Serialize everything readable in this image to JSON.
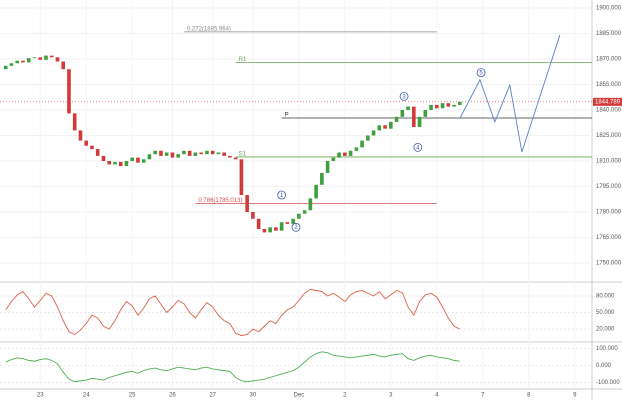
{
  "chart_data": {
    "type": "candlestick",
    "up_color": "#3f9f3f",
    "down_color": "#d23a3a",
    "x": [
      0,
      1,
      2,
      3,
      4,
      5,
      6,
      7,
      8,
      9,
      10,
      11,
      12,
      13,
      14,
      15,
      16,
      17,
      18,
      19,
      20,
      21,
      22,
      23,
      24,
      25,
      26,
      27,
      28,
      29,
      30,
      31,
      32,
      33,
      34,
      35,
      36,
      37,
      38,
      39,
      40,
      41,
      42,
      43,
      44,
      45,
      46,
      47,
      48,
      49,
      50,
      51,
      52,
      53,
      54,
      55,
      56,
      57,
      58,
      59,
      60,
      61,
      62,
      63,
      64,
      65,
      66,
      67,
      68,
      69,
      70,
      71,
      72,
      73,
      74,
      75,
      76,
      77,
      78,
      79
    ],
    "open": [
      1864,
      1866,
      1867.5,
      1869,
      1868,
      1870.5,
      1871,
      1869.5,
      1872,
      1871,
      1868.5,
      1864,
      1838,
      1828,
      1822,
      1819,
      1817,
      1813,
      1810,
      1808,
      1809.5,
      1807,
      1810,
      1812,
      1809,
      1811,
      1814,
      1816,
      1813,
      1815,
      1812,
      1814,
      1816,
      1813,
      1815,
      1814,
      1816,
      1814,
      1815,
      1813,
      1812,
      1811,
      1790,
      1780,
      1776,
      1770,
      1768,
      1771,
      1769,
      1774,
      1773,
      1776,
      1779,
      1781,
      1788,
      1796,
      1803,
      1810,
      1812,
      1815,
      1813,
      1816,
      1818,
      1822,
      1825,
      1828,
      1831,
      1829,
      1833,
      1836,
      1840,
      1842,
      1830,
      1836,
      1840,
      1843,
      1841,
      1844,
      1842,
      1843
    ],
    "close": [
      1866,
      1867.5,
      1869,
      1868,
      1870.5,
      1871,
      1869.5,
      1872,
      1871,
      1868.5,
      1864,
      1838,
      1828,
      1822,
      1819,
      1817,
      1813,
      1810,
      1808,
      1809.5,
      1807,
      1810,
      1812,
      1809,
      1811,
      1814,
      1816,
      1813,
      1815,
      1812,
      1814,
      1816,
      1813,
      1815,
      1814,
      1816,
      1814,
      1815,
      1813,
      1812,
      1811,
      1790,
      1780,
      1776,
      1770,
      1768,
      1771,
      1769,
      1774,
      1773,
      1776,
      1779,
      1781,
      1788,
      1796,
      1803,
      1810,
      1812,
      1815,
      1813,
      1816,
      1818,
      1822,
      1825,
      1828,
      1831,
      1829,
      1833,
      1836,
      1840,
      1842,
      1830,
      1836,
      1840,
      1843,
      1841,
      1844,
      1842,
      1843,
      1844.789
    ],
    "last_price": 1844.789,
    "xlim": [
      -1,
      102
    ],
    "xticks": [
      {
        "value": 6,
        "label": "23"
      },
      {
        "value": 14,
        "label": "24"
      },
      {
        "value": 22,
        "label": "25"
      },
      {
        "value": 29,
        "label": "26"
      },
      {
        "value": 36,
        "label": "27"
      },
      {
        "value": 43,
        "label": "30"
      },
      {
        "value": 51,
        "label": "Dec"
      },
      {
        "value": 59,
        "label": "2"
      },
      {
        "value": 67,
        "label": "3"
      },
      {
        "value": 75,
        "label": "4"
      },
      {
        "value": 83,
        "label": "7"
      },
      {
        "value": 91,
        "label": "8"
      },
      {
        "value": 99,
        "label": "9"
      }
    ],
    "ylim": [
      1740,
      1904.7
    ],
    "yticks": [
      {
        "value": 1900,
        "label": "1900.000"
      },
      {
        "value": 1885,
        "label": "1885.000"
      },
      {
        "value": 1870,
        "label": "1870.000"
      },
      {
        "value": 1855,
        "label": "1855.000"
      },
      {
        "value": 1840,
        "label": "1840.000"
      },
      {
        "value": 1825,
        "label": "1825.000"
      },
      {
        "value": 1810,
        "label": "1810.000"
      },
      {
        "value": 1795,
        "label": "1795.000"
      },
      {
        "value": 1780,
        "label": "1780.000"
      },
      {
        "value": 1765,
        "label": "1765.000"
      },
      {
        "value": 1750,
        "label": "1750.000"
      }
    ],
    "levels": [
      {
        "label": "0.272(1885.964)",
        "value": 1885.964,
        "from": 31,
        "to": 75,
        "color": "#8a8a8a"
      },
      {
        "label": "R1",
        "value": 1868,
        "from": 40,
        "to": 102,
        "color": "#6aa84f"
      },
      {
        "label": "P",
        "value": 1835.3,
        "from": 48,
        "to": 102,
        "color": "#333333"
      },
      {
        "label": "S1",
        "value": 1812.4,
        "from": 40,
        "to": 102,
        "color": "#6aa84f"
      },
      {
        "label": "0.786(1785.013)",
        "value": 1785.013,
        "from": 33,
        "to": 75,
        "color": "#d05050"
      }
    ],
    "waves": [
      {
        "label": "1",
        "x": 48,
        "y": 1790
      },
      {
        "label": "2",
        "x": 50.5,
        "y": 1771
      },
      {
        "label": "3",
        "x": 69.3,
        "y": 1848
      },
      {
        "label": "4",
        "x": 71.7,
        "y": 1818
      },
      {
        "label": "5",
        "x": 82.7,
        "y": 1862
      }
    ],
    "projection": {
      "color": "#5b7fc7",
      "x": [
        79,
        82.5,
        85.1,
        87.7,
        89.8,
        96.4
      ],
      "y": [
        1835,
        1857.7,
        1833,
        1854.7,
        1815.3,
        1884
      ]
    },
    "panels": [
      {
        "type": "line",
        "color": "#d9634a",
        "ylim": [
          0,
          100
        ],
        "yticks": [
          {
            "value": 20,
            "label": "20.000"
          },
          {
            "value": 50,
            "label": "50.000"
          },
          {
            "value": 80,
            "label": "80.000"
          }
        ],
        "values": [
          55,
          70,
          82,
          88,
          75,
          60,
          72,
          85,
          80,
          60,
          35,
          15,
          10,
          18,
          30,
          45,
          40,
          25,
          20,
          35,
          55,
          70,
          62,
          45,
          58,
          75,
          80,
          65,
          50,
          60,
          72,
          66,
          50,
          40,
          55,
          68,
          60,
          45,
          35,
          30,
          12,
          8,
          10,
          20,
          15,
          25,
          35,
          30,
          45,
          55,
          60,
          72,
          85,
          92,
          90,
          88,
          80,
          85,
          78,
          70,
          82,
          88,
          90,
          85,
          80,
          88,
          75,
          82,
          90,
          86,
          60,
          45,
          70,
          82,
          85,
          78,
          60,
          40,
          25,
          20
        ]
      },
      {
        "type": "line",
        "color": "#4caf50",
        "ylim": [
          -120,
          120
        ],
        "yticks": [
          {
            "value": -100,
            "label": "-100.000"
          },
          {
            "value": 0,
            "label": "0.000"
          },
          {
            "value": 100,
            "label": "100.000"
          }
        ],
        "values": [
          20,
          35,
          45,
          40,
          30,
          25,
          35,
          40,
          30,
          10,
          -40,
          -80,
          -95,
          -90,
          -85,
          -75,
          -80,
          -85,
          -70,
          -60,
          -50,
          -40,
          -35,
          -45,
          -30,
          -20,
          -15,
          -25,
          -30,
          -20,
          -10,
          -15,
          -20,
          -25,
          -15,
          -10,
          -20,
          -25,
          -30,
          -35,
          -70,
          -90,
          -95,
          -90,
          -85,
          -80,
          -70,
          -60,
          -50,
          -40,
          -30,
          -10,
          20,
          50,
          70,
          80,
          75,
          60,
          55,
          50,
          45,
          50,
          55,
          60,
          65,
          55,
          50,
          60,
          65,
          70,
          40,
          30,
          45,
          55,
          60,
          50,
          45,
          40,
          30,
          25
        ]
      }
    ]
  }
}
